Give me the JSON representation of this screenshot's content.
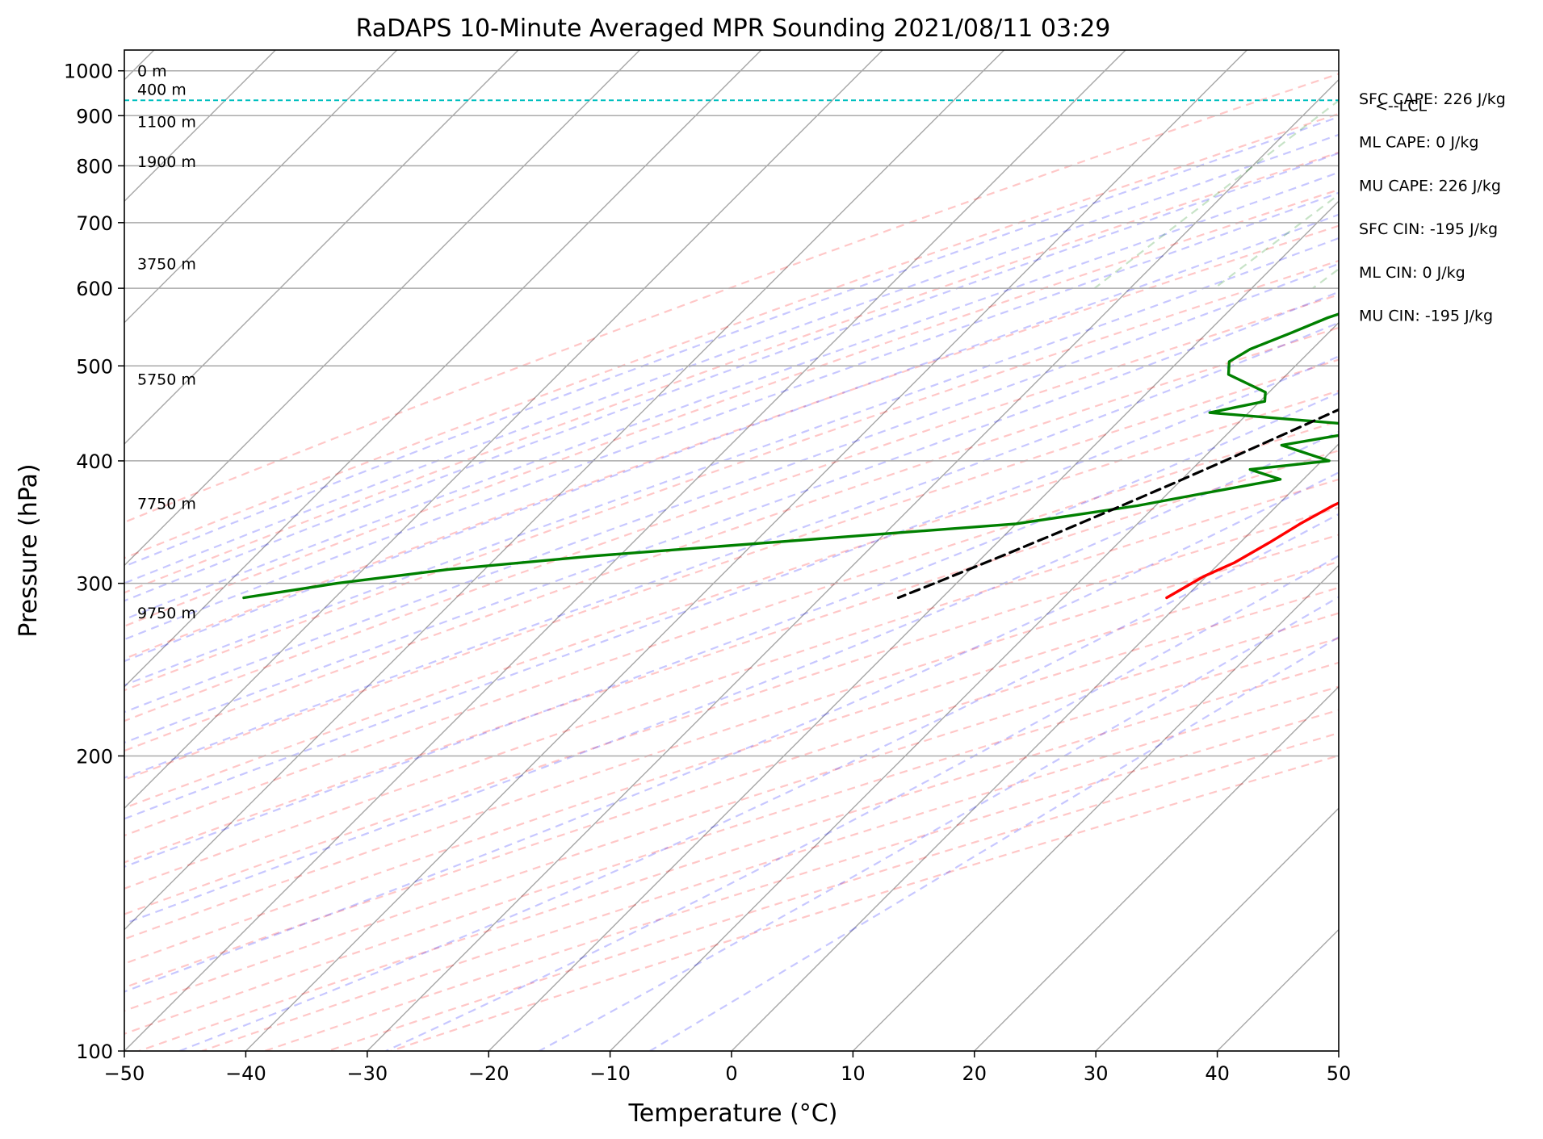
{
  "chart_data": {
    "type": "line",
    "title": "RaDAPS 10-Minute Averaged MPR Sounding 2021/08/11 03:29",
    "xlabel": "Temperature (°C)",
    "ylabel": "Pressure (hPa)",
    "xlim": [
      -50,
      50
    ],
    "ylim": [
      1050,
      100
    ],
    "y_scale": "log",
    "x_ticks": [
      "−50",
      "−40",
      "−30",
      "−20",
      "−10",
      "0",
      "10",
      "20",
      "30",
      "40",
      "50"
    ],
    "y_ticks": [
      "100",
      "200",
      "300",
      "400",
      "500",
      "600",
      "700",
      "800",
      "900",
      "1000"
    ],
    "grid": true,
    "skew_angle_deg": 45,
    "series": [
      {
        "color": "#ff0000",
        "points": [
          [
            1000,
            29.5
          ],
          [
            997,
            30.8
          ],
          [
            990,
            31.0
          ],
          [
            980,
            30.7
          ],
          [
            965,
            29.5
          ],
          [
            950,
            28.0
          ],
          [
            930,
            27.0
          ],
          [
            910,
            25.8
          ],
          [
            890,
            24.7
          ],
          [
            870,
            24.4
          ],
          [
            855,
            24.3
          ],
          [
            840,
            24.6
          ],
          [
            820,
            24.3
          ],
          [
            800,
            24.1
          ],
          [
            780,
            23.8
          ],
          [
            760,
            23.4
          ],
          [
            740,
            23.2
          ],
          [
            720,
            22.7
          ],
          [
            700,
            22.6
          ],
          [
            680,
            22.0
          ],
          [
            660,
            21.3
          ],
          [
            640,
            20.6
          ],
          [
            620,
            19.8
          ],
          [
            600,
            19.1
          ],
          [
            580,
            18.7
          ],
          [
            560,
            18.5
          ],
          [
            540,
            17.8
          ],
          [
            520,
            16.3
          ],
          [
            500,
            14.9
          ],
          [
            480,
            13.5
          ],
          [
            460,
            12.3
          ],
          [
            440,
            10.9
          ],
          [
            425,
            9.8
          ],
          [
            410,
            8.4
          ],
          [
            400,
            7.6
          ],
          [
            385,
            7.0
          ],
          [
            370,
            5.7
          ],
          [
            360,
            4.6
          ],
          [
            345,
            3.4
          ],
          [
            330,
            2.4
          ],
          [
            315,
            1.2
          ],
          [
            305,
            -0.2
          ],
          [
            290,
            -1.5
          ]
        ]
      },
      {
        "color": "#008000",
        "points": [
          [
            1000,
            23.9
          ],
          [
            985,
            21.2
          ],
          [
            975,
            20.7
          ],
          [
            965,
            21.5
          ],
          [
            955,
            20.6
          ],
          [
            945,
            19.7
          ],
          [
            930,
            19.0
          ],
          [
            915,
            17.5
          ],
          [
            900,
            16.5
          ],
          [
            880,
            16.6
          ],
          [
            860,
            16.3
          ],
          [
            845,
            16.6
          ],
          [
            830,
            16.2
          ],
          [
            815,
            16.0
          ],
          [
            800,
            14.8
          ],
          [
            785,
            14.1
          ],
          [
            765,
            13.7
          ],
          [
            745,
            13.7
          ],
          [
            730,
            12.8
          ],
          [
            715,
            11.6
          ],
          [
            695,
            10.3
          ],
          [
            675,
            8.5
          ],
          [
            660,
            6.1
          ],
          [
            645,
            3.7
          ],
          [
            630,
            1.8
          ],
          [
            615,
            -0.7
          ],
          [
            600,
            -4.8
          ],
          [
            580,
            -8.8
          ],
          [
            560,
            -11.3
          ],
          [
            540,
            -13.1
          ],
          [
            520,
            -15.1
          ],
          [
            505,
            -15.8
          ],
          [
            490,
            -14.8
          ],
          [
            470,
            -10.3
          ],
          [
            460,
            -9.6
          ],
          [
            448,
            -13.2
          ],
          [
            435,
            0.3
          ],
          [
            428,
            0.6
          ],
          [
            415,
            -4.6
          ],
          [
            400,
            0.6
          ],
          [
            392,
            -5.2
          ],
          [
            383,
            -1.9
          ],
          [
            370,
            -7.3
          ],
          [
            360,
            -11.5
          ],
          [
            345,
            -20.0
          ],
          [
            330,
            -39.0
          ],
          [
            320,
            -52.0
          ],
          [
            310,
            -63.0
          ],
          [
            300,
            -71.0
          ],
          [
            290,
            -77.5
          ]
        ]
      },
      {
        "color": "#000000",
        "dashed": true,
        "points": [
          [
            1000,
            29.0
          ],
          [
            965,
            26.0
          ],
          [
            940,
            24.3
          ],
          [
            920,
            23.5
          ],
          [
            900,
            22.4
          ],
          [
            880,
            21.6
          ],
          [
            860,
            20.8
          ],
          [
            840,
            20.0
          ],
          [
            820,
            19.3
          ],
          [
            800,
            18.4
          ],
          [
            780,
            17.6
          ],
          [
            760,
            16.7
          ],
          [
            740,
            15.8
          ],
          [
            720,
            14.9
          ],
          [
            700,
            13.9
          ],
          [
            680,
            12.9
          ],
          [
            660,
            11.9
          ],
          [
            640,
            10.8
          ],
          [
            620,
            9.6
          ],
          [
            600,
            8.5
          ],
          [
            580,
            7.2
          ],
          [
            560,
            5.9
          ],
          [
            540,
            4.5
          ],
          [
            520,
            3.0
          ],
          [
            500,
            1.4
          ],
          [
            480,
            -0.3
          ],
          [
            460,
            -2.0
          ],
          [
            440,
            -3.9
          ],
          [
            420,
            -5.9
          ],
          [
            400,
            -8.0
          ],
          [
            380,
            -10.3
          ],
          [
            360,
            -12.8
          ],
          [
            340,
            -15.5
          ],
          [
            320,
            -18.5
          ],
          [
            300,
            -21.8
          ],
          [
            290,
            -23.6
          ]
        ]
      }
    ],
    "height_labels": [
      {
        "label": "9750 m",
        "p": 280
      },
      {
        "label": "7750 m",
        "p": 362
      },
      {
        "label": "5750 m",
        "p": 485
      },
      {
        "label": "3750 m",
        "p": 636
      },
      {
        "label": "1900 m",
        "p": 808
      },
      {
        "label": "1100 m",
        "p": 888
      },
      {
        "label": "400 m",
        "p": 958
      },
      {
        "label": "0 m",
        "p": 1000
      }
    ],
    "lcl": {
      "label": "<--LCL",
      "p": 933,
      "color": "#00bfbf"
    },
    "stats": [
      "SFC CAPE: 226 J/kg",
      "ML CAPE: 0 J/kg",
      "MU CAPE: 226 J/kg",
      "SFC CIN: -195 J/kg",
      "ML CIN: 0 J/kg",
      "MU CIN: -195 J/kg"
    ],
    "background_lines": {
      "dry_adiabats": {
        "color": "#ff0000",
        "opacity": 0.22
      },
      "moist_adiabats": {
        "color": "#0000ff",
        "opacity": 0.22
      },
      "mixing_ratio_lines": {
        "color": "#008000",
        "opacity": 0.22
      },
      "skewed_isotherms": {
        "color": "#000000",
        "opacity": 0.35
      }
    }
  }
}
